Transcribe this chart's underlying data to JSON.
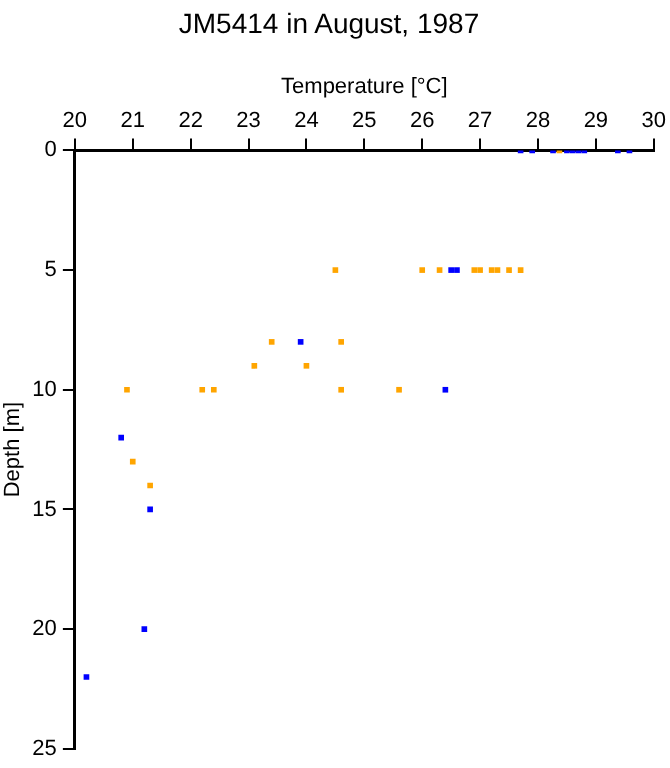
{
  "chart_data": {
    "type": "scatter",
    "title": "JM5414 in August, 1987",
    "xlabel": "Temperature [°C]",
    "ylabel": "Depth [m]",
    "xlim": [
      20,
      30
    ],
    "xticks": [
      20,
      21,
      22,
      23,
      24,
      25,
      26,
      27,
      28,
      29,
      30
    ],
    "ylim": [
      25,
      0
    ],
    "yticks": [
      0,
      5,
      10,
      15,
      20,
      25
    ],
    "grid": false,
    "legend": false,
    "marker": "square",
    "series": [
      {
        "color": "#ffa500",
        "x": [
          28.37,
          24.5,
          26.0,
          26.3,
          26.9,
          27.0,
          27.2,
          27.3,
          27.5,
          27.7,
          23.4,
          24.6,
          23.1,
          24.0,
          20.9,
          22.2,
          22.4,
          24.6,
          25.6,
          21.0,
          21.3
        ],
        "values": [
          0,
          5,
          5,
          5,
          5,
          5,
          5,
          5,
          5,
          5,
          8,
          8,
          9,
          9,
          10,
          10,
          10,
          10,
          10,
          13,
          14
        ]
      },
      {
        "color": "#0000ff",
        "x": [
          27.7,
          27.9,
          28.26,
          28.5,
          28.6,
          28.7,
          28.8,
          29.38,
          29.58,
          26.5,
          26.6,
          23.9,
          26.4,
          20.8,
          21.3,
          21.2,
          20.2
        ],
        "values": [
          0,
          0,
          0,
          0,
          0,
          0,
          0,
          0,
          0,
          5,
          5,
          8,
          10,
          12,
          15,
          20,
          22
        ]
      }
    ]
  }
}
